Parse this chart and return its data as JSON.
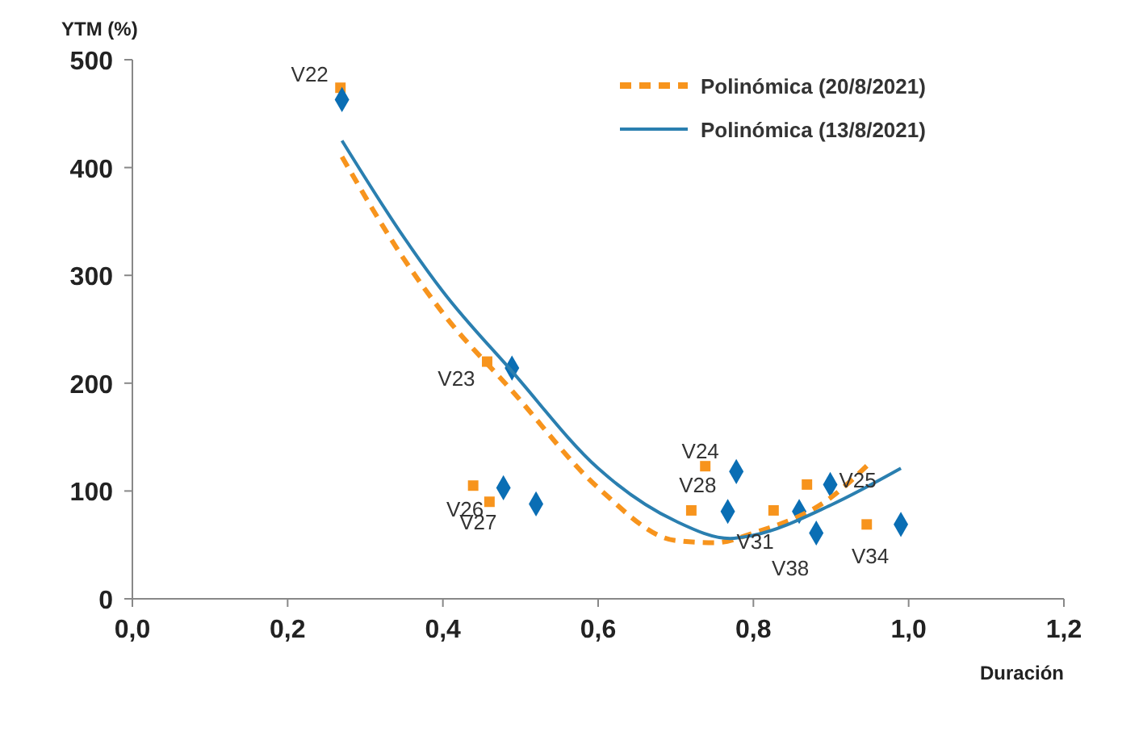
{
  "chart_data": {
    "type": "scatter",
    "xlabel": "Duración",
    "ylabel": "YTM (%)",
    "xlim": [
      0,
      1.2
    ],
    "ylim": [
      0,
      500
    ],
    "xticks": [
      {
        "value": 0,
        "label": "0,0"
      },
      {
        "value": 0.2,
        "label": "0,2"
      },
      {
        "value": 0.4,
        "label": "0,4"
      },
      {
        "value": 0.6,
        "label": "0,6"
      },
      {
        "value": 0.8,
        "label": "0,8"
      },
      {
        "value": 1,
        "label": "1,0"
      },
      {
        "value": 1.2,
        "label": "1,2"
      }
    ],
    "yticks": [
      0,
      100,
      200,
      300,
      400,
      500
    ],
    "grid": false,
    "legend": "top right",
    "series": [
      {
        "color": "#f7941d",
        "marker": "square",
        "x": [
          0.268,
          0.457,
          0.439,
          0.46,
          0.738,
          0.72,
          0.826,
          0.869,
          0.946
        ],
        "values": [
          474,
          220,
          105,
          90,
          123,
          82,
          82,
          106,
          69
        ]
      },
      {
        "color": "#0a6eb4",
        "marker": "diamond",
        "x": [
          0.27,
          0.489,
          0.478,
          0.52,
          0.778,
          0.767,
          0.859,
          0.881,
          0.899,
          0.99
        ],
        "values": [
          463,
          214,
          103,
          88,
          118,
          81,
          81,
          61,
          106,
          69
        ]
      },
      {
        "type": "line",
        "name": "Polinómica (20/8/2021)",
        "color": "#f7941d",
        "line_style": "dashed",
        "marker": "none",
        "x": [
          0.27,
          0.35,
          0.4,
          0.489,
          0.6,
          0.7,
          0.75,
          0.8,
          0.9,
          0.95
        ],
        "values": [
          410,
          315,
          265,
          193,
          103,
          54,
          52,
          61,
          94,
          126
        ]
      },
      {
        "type": "line",
        "name": "Polinómica (13/8/2021)",
        "color": "#2a7fb0",
        "line_style": "solid",
        "marker": "none",
        "x": [
          0.27,
          0.35,
          0.4,
          0.489,
          0.6,
          0.7,
          0.77,
          0.8,
          0.9,
          0.99
        ],
        "values": [
          425,
          335,
          285,
          211,
          121,
          72,
          56,
          59,
          87,
          121
        ]
      }
    ],
    "annotations": [
      {
        "text": "V22",
        "x": 0.268,
        "y": 474
      },
      {
        "text": "V23",
        "x": 0.457,
        "y": 220
      },
      {
        "text": "V24",
        "x": 0.738,
        "y": 123
      },
      {
        "text": "V28",
        "x": 0.72,
        "y": 82
      },
      {
        "text": "V25",
        "x": 0.899,
        "y": 106
      },
      {
        "text": "V26",
        "x": 0.439,
        "y": 105
      },
      {
        "text": "V27",
        "x": 0.46,
        "y": 90
      },
      {
        "text": "V31",
        "x": 0.767,
        "y": 81
      },
      {
        "text": "V38",
        "x": 0.881,
        "y": 61
      },
      {
        "text": "V34",
        "x": 0.99,
        "y": 69
      }
    ]
  }
}
